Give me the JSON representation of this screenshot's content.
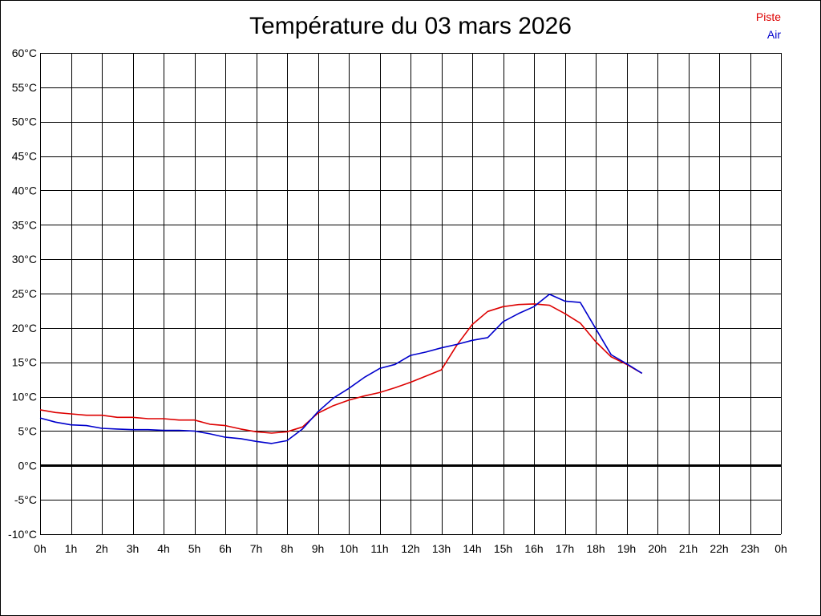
{
  "chart_data": {
    "type": "line",
    "title": "Température du 03 mars 2026",
    "xlabel": "",
    "ylabel": "",
    "grid": true,
    "legend_position": "top-right",
    "xlim": [
      0,
      24
    ],
    "ylim": [
      -10,
      60
    ],
    "x_ticks": [
      0,
      1,
      2,
      3,
      4,
      5,
      6,
      7,
      8,
      9,
      10,
      11,
      12,
      13,
      14,
      15,
      16,
      17,
      18,
      19,
      20,
      21,
      22,
      23,
      24
    ],
    "x_tick_labels": [
      "0h",
      "1h",
      "2h",
      "3h",
      "4h",
      "5h",
      "6h",
      "7h",
      "8h",
      "9h",
      "10h",
      "11h",
      "12h",
      "13h",
      "14h",
      "15h",
      "16h",
      "17h",
      "18h",
      "19h",
      "20h",
      "21h",
      "22h",
      "23h",
      "0h"
    ],
    "y_ticks": [
      -10,
      -5,
      0,
      5,
      10,
      15,
      20,
      25,
      30,
      35,
      40,
      45,
      50,
      55,
      60
    ],
    "y_tick_labels": [
      "-10°C",
      "-5°C",
      "0°C",
      "5°C",
      "10°C",
      "15°C",
      "20°C",
      "25°C",
      "30°C",
      "35°C",
      "40°C",
      "45°C",
      "50°C",
      "55°C",
      "60°C"
    ],
    "x": [
      0,
      0.5,
      1,
      1.5,
      2,
      2.5,
      3,
      3.5,
      4,
      4.5,
      5,
      5.5,
      6,
      6.5,
      7,
      7.5,
      8,
      8.5,
      9,
      9.5,
      10,
      10.5,
      11,
      11.5,
      12,
      12.5,
      13,
      13.5,
      14,
      14.5,
      15,
      15.5,
      16,
      16.5,
      17,
      17.5,
      18,
      18.5,
      19,
      19.5
    ],
    "series": [
      {
        "name": "Piste",
        "color": "#dd0000",
        "values": [
          8.1,
          7.7,
          7.5,
          7.3,
          7.3,
          7.0,
          7.0,
          6.8,
          6.8,
          6.6,
          6.6,
          6.0,
          5.8,
          5.3,
          4.9,
          4.7,
          4.9,
          5.6,
          7.6,
          8.7,
          9.5,
          10.1,
          10.6,
          11.3,
          12.1,
          13.0,
          13.9,
          17.5,
          20.5,
          22.4,
          23.1,
          23.4,
          23.5,
          23.3,
          22.1,
          20.7,
          18.0,
          15.8,
          14.7,
          13.4
        ]
      },
      {
        "name": "Air",
        "color": "#0000cc",
        "values": [
          6.9,
          6.3,
          5.9,
          5.8,
          5.4,
          5.3,
          5.2,
          5.2,
          5.1,
          5.1,
          5.0,
          4.6,
          4.1,
          3.9,
          3.5,
          3.2,
          3.6,
          5.3,
          7.8,
          9.8,
          11.2,
          12.8,
          14.1,
          14.7,
          16.0,
          16.5,
          17.1,
          17.6,
          18.2,
          18.6,
          20.9,
          22.1,
          23.1,
          24.9,
          23.9,
          23.7,
          19.9,
          16.1,
          14.8,
          13.4
        ]
      }
    ]
  }
}
